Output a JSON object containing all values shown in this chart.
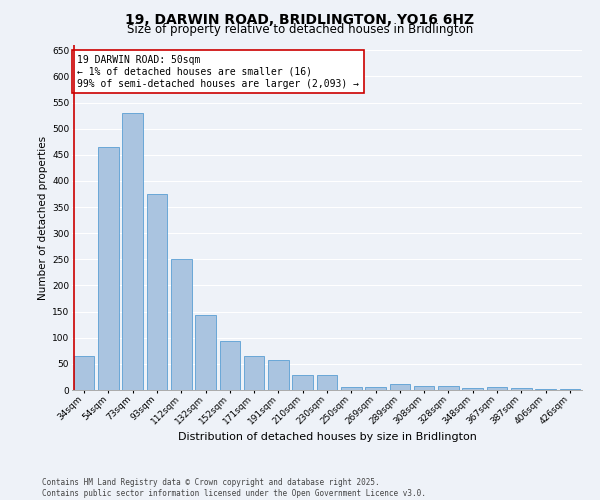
{
  "title": "19, DARWIN ROAD, BRIDLINGTON, YO16 6HZ",
  "subtitle": "Size of property relative to detached houses in Bridlington",
  "xlabel": "Distribution of detached houses by size in Bridlington",
  "ylabel": "Number of detached properties",
  "categories": [
    "34sqm",
    "54sqm",
    "73sqm",
    "93sqm",
    "112sqm",
    "132sqm",
    "152sqm",
    "171sqm",
    "191sqm",
    "210sqm",
    "230sqm",
    "250sqm",
    "269sqm",
    "289sqm",
    "308sqm",
    "328sqm",
    "348sqm",
    "367sqm",
    "387sqm",
    "406sqm",
    "426sqm"
  ],
  "values": [
    65,
    465,
    530,
    375,
    250,
    143,
    93,
    65,
    57,
    28,
    28,
    6,
    6,
    11,
    7,
    7,
    4,
    5,
    3,
    2,
    1
  ],
  "bar_color": "#aac4e0",
  "bar_edge_color": "#5a9fd4",
  "highlight_line_color": "#cc0000",
  "annotation_text": "19 DARWIN ROAD: 50sqm\n← 1% of detached houses are smaller (16)\n99% of semi-detached houses are larger (2,093) →",
  "annotation_box_color": "#ffffff",
  "annotation_box_edge_color": "#cc0000",
  "ylim": [
    0,
    660
  ],
  "yticks": [
    0,
    50,
    100,
    150,
    200,
    250,
    300,
    350,
    400,
    450,
    500,
    550,
    600,
    650
  ],
  "background_color": "#eef2f8",
  "grid_color": "#ffffff",
  "footer": "Contains HM Land Registry data © Crown copyright and database right 2025.\nContains public sector information licensed under the Open Government Licence v3.0.",
  "title_fontsize": 10,
  "subtitle_fontsize": 8.5,
  "xlabel_fontsize": 8,
  "ylabel_fontsize": 7.5,
  "tick_fontsize": 6.5,
  "annotation_fontsize": 7,
  "footer_fontsize": 5.5
}
